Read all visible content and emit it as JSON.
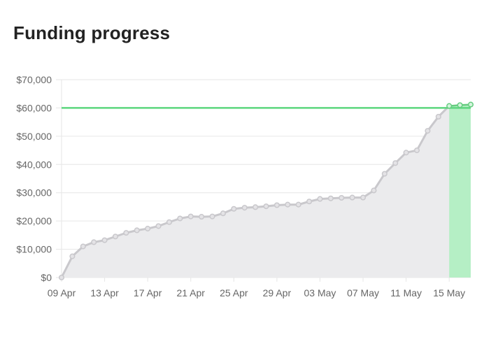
{
  "page": {
    "title": "Funding progress"
  },
  "chart_data": {
    "type": "line",
    "title": "Funding progress",
    "xlabel": "",
    "ylabel": "",
    "x_tick_labels": [
      "09 Apr",
      "13 Apr",
      "17 Apr",
      "21 Apr",
      "25 Apr",
      "29 Apr",
      "03 May",
      "07 May",
      "11 May",
      "15 May"
    ],
    "y_tick_labels": [
      "$0",
      "$10,000",
      "$20,000",
      "$30,000",
      "$40,000",
      "$50,000",
      "$60,000",
      "$70,000"
    ],
    "ylim": [
      0,
      70000
    ],
    "xlim": [
      "2024-04-09",
      "2024-05-17"
    ],
    "grid": true,
    "goal": 60000,
    "colors": {
      "line": "#c9c8cc",
      "fill": "#ebebed",
      "goal": "#5cd67e",
      "reached_fill": "#b5efc5",
      "reached_line": "#66cc80",
      "grid": "#e6e6e6"
    },
    "series": [
      {
        "x": [
          "2024-04-09",
          "2024-04-10",
          "2024-04-11",
          "2024-04-12",
          "2024-04-13",
          "2024-04-14",
          "2024-04-15",
          "2024-04-16",
          "2024-04-17",
          "2024-04-18",
          "2024-04-19",
          "2024-04-20",
          "2024-04-21",
          "2024-04-22",
          "2024-04-23",
          "2024-04-24",
          "2024-04-25",
          "2024-04-26",
          "2024-04-27",
          "2024-04-28",
          "2024-04-29",
          "2024-04-30",
          "2024-05-01",
          "2024-05-02",
          "2024-05-03",
          "2024-05-04",
          "2024-05-05",
          "2024-05-06",
          "2024-05-07",
          "2024-05-08",
          "2024-05-09",
          "2024-05-10",
          "2024-05-11",
          "2024-05-12",
          "2024-05-13",
          "2024-05-14",
          "2024-05-15",
          "2024-05-16",
          "2024-05-17"
        ],
        "values": [
          0,
          7500,
          11000,
          12500,
          13200,
          14500,
          15800,
          16700,
          17300,
          18200,
          19600,
          20900,
          21600,
          21500,
          21600,
          22700,
          24300,
          24700,
          24900,
          25200,
          25600,
          25800,
          25800,
          26900,
          27800,
          28000,
          28200,
          28300,
          28300,
          30800,
          36700,
          40500,
          44200,
          45000,
          51900,
          56900,
          60700,
          61000,
          61200
        ]
      }
    ]
  }
}
